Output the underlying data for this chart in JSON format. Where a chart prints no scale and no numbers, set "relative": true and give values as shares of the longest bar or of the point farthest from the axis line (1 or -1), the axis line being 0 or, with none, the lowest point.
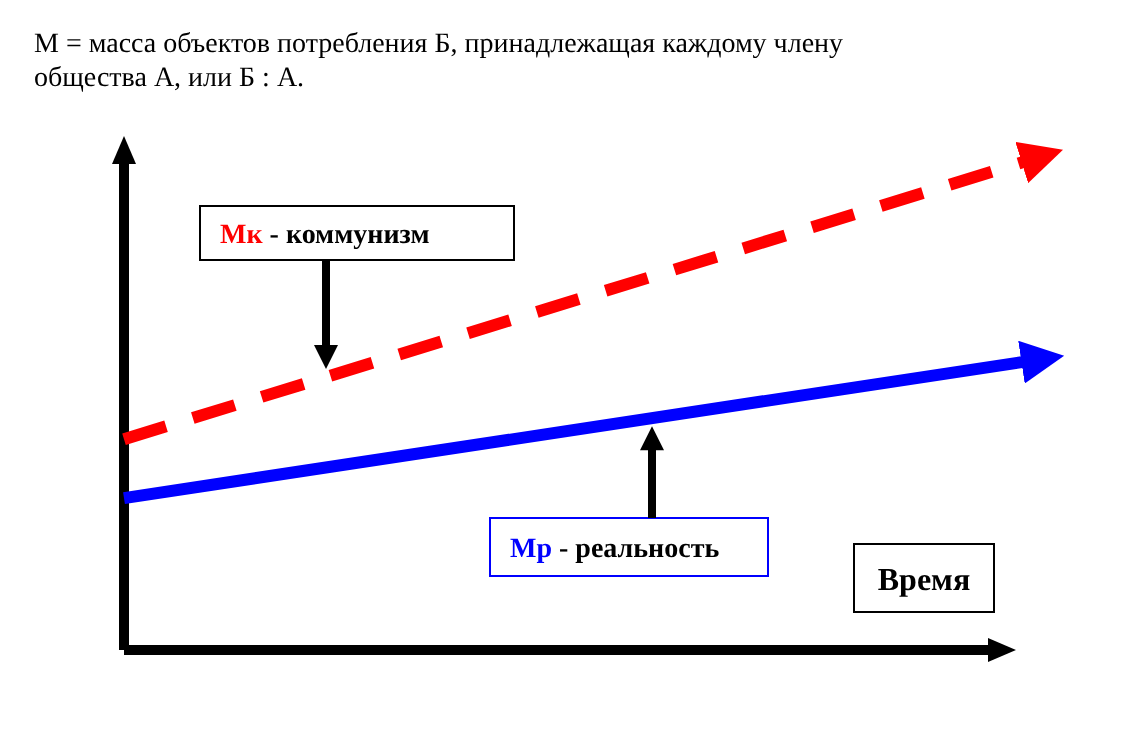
{
  "chart_data": {
    "type": "line",
    "title": "М = масса объектов потребления Б, принадлежащая каждому члену общества А, или  Б : А.",
    "xlabel": "Время",
    "relative": true,
    "categories": [
      null,
      null
    ],
    "series": [
      {
        "name": "Мк - коммунизм",
        "color": "#ff0000",
        "values": [
          0.43,
          1
        ],
        "line_style": "dashed"
      },
      {
        "name": "Мр - реальность",
        "color": "#0000ff",
        "values": [
          0.31,
          0.59
        ],
        "line_style": "solid"
      }
    ]
  }
}
